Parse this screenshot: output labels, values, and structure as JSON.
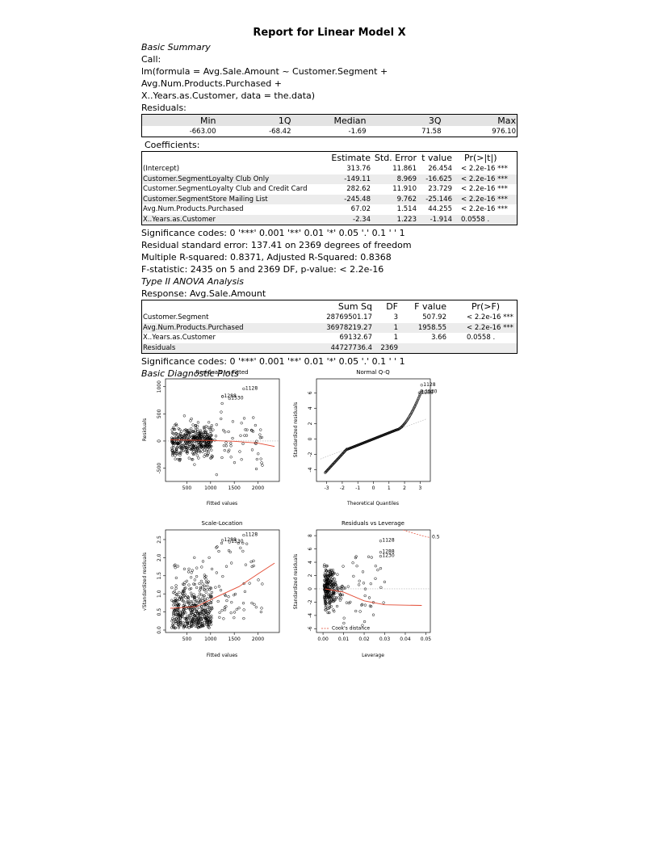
{
  "report_title": "Report for Linear Model X",
  "basic_summary_heading": "Basic Summary",
  "call_label": "Call:",
  "call_line1": "lm(formula = Avg.Sale.Amount ~ Customer.Segment + Avg.Num.Products.Purchased +",
  "call_line2": "X..Years.as.Customer, data = the.data)",
  "residuals_label": "Residuals:",
  "residuals": {
    "headers": [
      "Min",
      "1Q",
      "Median",
      "3Q",
      "Max"
    ],
    "values": [
      "-663.00",
      "-68.42",
      "-1.69",
      "71.58",
      "976.10"
    ]
  },
  "coefficients_label": "Coefficients:",
  "coefficients": {
    "headers": [
      "",
      "Estimate",
      "Std. Error",
      "t value",
      "Pr(>|t|)"
    ],
    "rows": [
      {
        "name": "(Intercept)",
        "estimate": "313.76",
        "stderr": "11.861",
        "t": "26.454",
        "p": "< 2.2e-16 ***"
      },
      {
        "name": "Customer.SegmentLoyalty Club Only",
        "estimate": "-149.11",
        "stderr": "8.969",
        "t": "-16.625",
        "p": "< 2.2e-16 ***"
      },
      {
        "name": "Customer.SegmentLoyalty Club and Credit Card",
        "estimate": "282.62",
        "stderr": "11.910",
        "t": "23.729",
        "p": "< 2.2e-16 ***"
      },
      {
        "name": "Customer.SegmentStore Mailing List",
        "estimate": "-245.48",
        "stderr": "9.762",
        "t": "-25.146",
        "p": "< 2.2e-16 ***"
      },
      {
        "name": "Avg.Num.Products.Purchased",
        "estimate": "67.02",
        "stderr": "1.514",
        "t": "44.255",
        "p": "< 2.2e-16 ***"
      },
      {
        "name": "X..Years.as.Customer",
        "estimate": "-2.34",
        "stderr": "1.223",
        "t": "-1.914",
        "p": "0.0558 ."
      }
    ]
  },
  "signif_codes_1": "Significance codes: 0 '***' 0.001 '**' 0.01 '*' 0.05 '.' 0.1 ' ' 1",
  "rse_line": "Residual standard error: 137.41 on 2369 degrees of freedom",
  "r2_line": "Multiple R-squared: 0.8371, Adjusted R-Squared: 0.8368",
  "f_line": "F-statistic: 2435 on 5 and 2369 DF, p-value: < 2.2e-16",
  "anova_heading": "Type II ANOVA Analysis",
  "response_line": "Response: Avg.Sale.Amount",
  "anova": {
    "headers": [
      "",
      "Sum Sq",
      "DF",
      "F value",
      "Pr(>F)"
    ],
    "rows": [
      {
        "name": "Customer.Segment",
        "sumsq": "28769501.17",
        "df": "3",
        "f": "507.92",
        "p": "< 2.2e-16 ***"
      },
      {
        "name": "Avg.Num.Products.Purchased",
        "sumsq": "36978219.27",
        "df": "1",
        "f": "1958.55",
        "p": "< 2.2e-16 ***"
      },
      {
        "name": "X..Years.as.Customer",
        "sumsq": "69132.67",
        "df": "1",
        "f": "3.66",
        "p": "0.0558 ."
      },
      {
        "name": "Residuals",
        "sumsq": "44727736.4",
        "df": "2369",
        "f": "",
        "p": ""
      }
    ]
  },
  "signif_codes_2": "Significance codes: 0 '***' 0.001 '**' 0.01 '*' 0.05 '.' 0.1 ' ' 1",
  "plots_heading": "Basic Diagnostic Plots",
  "chart_data": [
    {
      "type": "scatter",
      "title": "Residuals vs Fitted",
      "xlabel": "Fitted values",
      "ylabel": "Residuals",
      "xlim": [
        100,
        2400
      ],
      "ylim": [
        -700,
        1100
      ],
      "xticks": [
        "500",
        "1000",
        "1500",
        "2000"
      ],
      "yticks": [
        "-500",
        "0",
        "500",
        "1000"
      ],
      "labeled_points": [
        "1128",
        "1288",
        "1530"
      ],
      "smooth_line": [
        [
          150,
          20
        ],
        [
          1000,
          10
        ],
        [
          1500,
          -5
        ],
        [
          2000,
          -40
        ],
        [
          2350,
          -100
        ]
      ]
    },
    {
      "type": "scatter",
      "title": "Normal Q-Q",
      "xlabel": "Theoretical Quantiles",
      "ylabel": "Standardized residuals",
      "xlim": [
        -3.5,
        3.5
      ],
      "ylim": [
        -5.2,
        7.5
      ],
      "xticks": [
        "-3",
        "-2",
        "-1",
        "0",
        "1",
        "2",
        "3"
      ],
      "yticks": [
        "-4",
        "-2",
        "0",
        "2",
        "4",
        "6"
      ],
      "labeled_points": [
        "1128",
        "1288",
        "1530"
      ]
    },
    {
      "type": "scatter",
      "title": "Scale-Location",
      "xlabel": "Fitted values",
      "ylabel": "√Standardized residuals",
      "xlim": [
        100,
        2400
      ],
      "ylim": [
        0,
        2.7
      ],
      "xticks": [
        "500",
        "1000",
        "1500",
        "2000"
      ],
      "yticks": [
        "0.0",
        "0.5",
        "1.0",
        "1.5",
        "2.0",
        "2.5"
      ],
      "labeled_points": [
        "1128",
        "1288",
        "1530"
      ],
      "smooth_line": [
        [
          150,
          0.6
        ],
        [
          700,
          0.65
        ],
        [
          1100,
          0.9
        ],
        [
          1600,
          1.2
        ],
        [
          2000,
          1.55
        ],
        [
          2350,
          1.85
        ]
      ]
    },
    {
      "type": "scatter",
      "title": "Residuals vs Leverage",
      "xlabel": "Leverage",
      "ylabel": "Standardized residuals",
      "xlim": [
        -0.002,
        0.051
      ],
      "ylim": [
        -6.2,
        8.5
      ],
      "xticks": [
        "0.00",
        "0.01",
        "0.02",
        "0.03",
        "0.04",
        "0.05"
      ],
      "yticks": [
        "-6",
        "-4",
        "-2",
        "0",
        "2",
        "4",
        "6",
        "8"
      ],
      "labeled_points": [
        "1128",
        "1288",
        "1230"
      ],
      "cook_label": "0.5",
      "legend": "Cook's distance",
      "smooth_line": [
        [
          0.001,
          0
        ],
        [
          0.01,
          -0.5
        ],
        [
          0.02,
          -1.8
        ],
        [
          0.03,
          -2.4
        ],
        [
          0.048,
          -2.5
        ]
      ]
    }
  ]
}
